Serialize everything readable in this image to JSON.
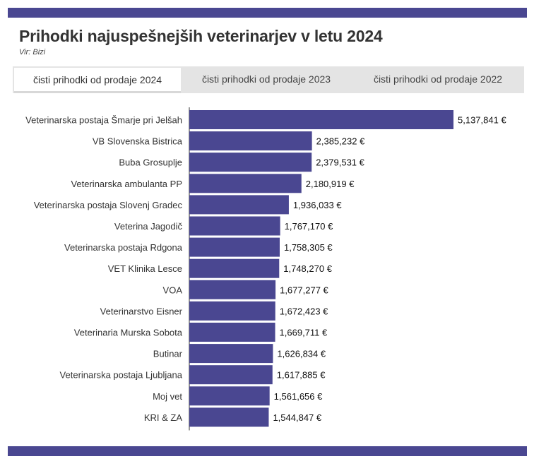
{
  "header": {
    "title": "Prihodki najuspešnejših veterinarjev v letu 2024",
    "source": "Vir: Bizi"
  },
  "tabs": [
    {
      "label": "čisti prihodki od prodaje 2024",
      "active": true
    },
    {
      "label": "čisti prihodki od prodaje 2023",
      "active": false
    },
    {
      "label": "čisti prihodki od prodaje 2022",
      "active": false
    }
  ],
  "colors": {
    "accent": "#4a4791",
    "bar": "#4a4791"
  },
  "chart_data": {
    "type": "bar",
    "orientation": "horizontal",
    "categories": [
      "Veterinarska postaja Šmarje pri Jelšah",
      "VB Slovenska Bistrica",
      "Buba Grosuplje",
      "Veterinarska ambulanta PP",
      "Veterinarska postaja Slovenj Gradec",
      "Veterina Jagodič",
      "Veterinarska postaja Rdgona",
      "VET Klinika Lesce",
      "VOA",
      "Veterinarstvo Eisner",
      "Veterinaria Murska Sobota",
      "Butinar",
      "Veterinarska postaja Ljubljana",
      "Moj vet",
      "KRI & ZA"
    ],
    "values": [
      5137841,
      2385232,
      2379531,
      2180919,
      1936033,
      1767170,
      1758305,
      1748270,
      1677277,
      1672423,
      1669711,
      1626834,
      1617885,
      1561656,
      1544847
    ],
    "value_labels": [
      "5,137,841 €",
      "2,385,232 €",
      "2,379,531 €",
      "2,180,919 €",
      "1,936,033 €",
      "1,767,170 €",
      "1,758,305 €",
      "1,748,270 €",
      "1,677,277 €",
      "1,672,423 €",
      "1,669,711 €",
      "1,626,834 €",
      "1,617,885 €",
      "1,561,656 €",
      "1,544,847 €"
    ],
    "xlim": [
      0,
      5137841
    ],
    "grid": false
  }
}
